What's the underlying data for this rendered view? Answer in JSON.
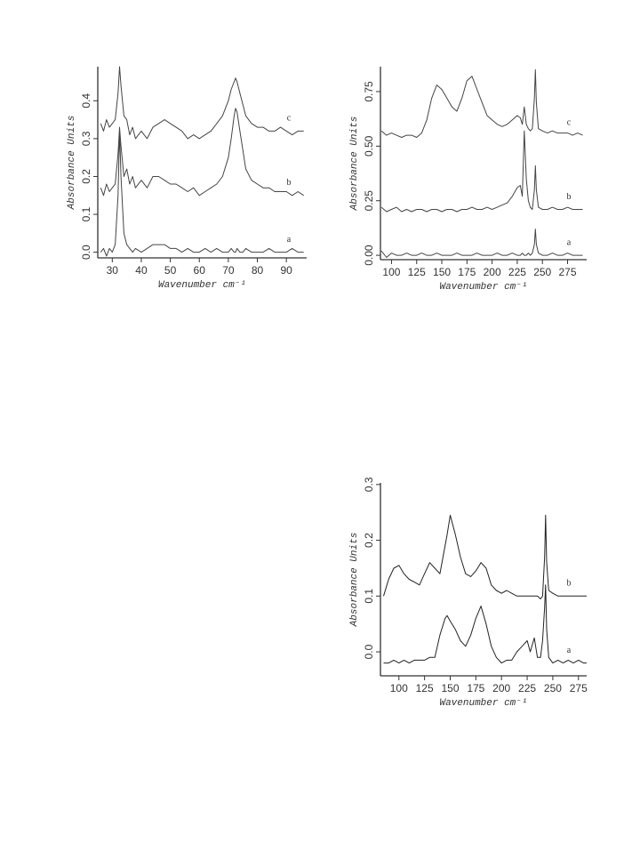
{
  "chart_data": [
    {
      "type": "line",
      "y_label": "Absorbance Units",
      "x_label": "Wavenumber cm⁻¹",
      "x": [
        26,
        27,
        28,
        29,
        30,
        31,
        32,
        32.5,
        33,
        34,
        35,
        36,
        37,
        38,
        40,
        42,
        44,
        46,
        48,
        50,
        52,
        54,
        56,
        58,
        60,
        62,
        64,
        66,
        68,
        70,
        71,
        72,
        72.5,
        73,
        74,
        75,
        76,
        78,
        80,
        82,
        84,
        86,
        88,
        90,
        92,
        94,
        96
      ],
      "series": [
        {
          "name": "a",
          "color": "#444444",
          "values": [
            0.0,
            0.01,
            -0.01,
            0.01,
            0.0,
            0.02,
            0.15,
            0.32,
            0.2,
            0.05,
            0.02,
            0.01,
            0.0,
            0.01,
            0.0,
            0.01,
            0.02,
            0.02,
            0.02,
            0.01,
            0.01,
            0.0,
            0.01,
            0.0,
            0.0,
            0.01,
            0.0,
            0.01,
            0.0,
            0.0,
            0.01,
            0.0,
            0.0,
            0.01,
            0.0,
            0.0,
            0.01,
            0.0,
            0.0,
            0.0,
            0.01,
            0.0,
            0.0,
            0.0,
            0.01,
            0.0,
            0.0
          ]
        },
        {
          "name": "b",
          "color": "#444444",
          "values": [
            0.17,
            0.15,
            0.18,
            0.16,
            0.17,
            0.18,
            0.26,
            0.33,
            0.28,
            0.2,
            0.22,
            0.18,
            0.2,
            0.17,
            0.19,
            0.17,
            0.2,
            0.2,
            0.19,
            0.18,
            0.18,
            0.17,
            0.16,
            0.17,
            0.15,
            0.16,
            0.17,
            0.18,
            0.2,
            0.25,
            0.3,
            0.36,
            0.38,
            0.37,
            0.32,
            0.27,
            0.22,
            0.19,
            0.18,
            0.17,
            0.17,
            0.16,
            0.16,
            0.16,
            0.15,
            0.16,
            0.15
          ]
        },
        {
          "name": "c",
          "color": "#444444",
          "values": [
            0.34,
            0.32,
            0.35,
            0.33,
            0.34,
            0.35,
            0.42,
            0.49,
            0.44,
            0.36,
            0.35,
            0.31,
            0.33,
            0.3,
            0.32,
            0.3,
            0.33,
            0.34,
            0.35,
            0.34,
            0.33,
            0.32,
            0.3,
            0.31,
            0.3,
            0.31,
            0.32,
            0.34,
            0.36,
            0.4,
            0.43,
            0.45,
            0.46,
            0.45,
            0.42,
            0.39,
            0.36,
            0.34,
            0.33,
            0.33,
            0.32,
            0.32,
            0.33,
            0.32,
            0.31,
            0.32,
            0.32
          ]
        }
      ],
      "xlim": [
        25,
        97
      ],
      "ylim": [
        -0.015,
        0.49
      ],
      "xticks": [
        30,
        40,
        50,
        60,
        70,
        80,
        90
      ],
      "yticks": [
        {
          "value": 0,
          "label": "0.0"
        },
        0.1,
        0.2,
        0.3,
        0.4
      ]
    },
    {
      "type": "line",
      "y_label": "Absorbance Units",
      "x_label": "Wavenumber cm⁻¹",
      "x": [
        90,
        95,
        100,
        105,
        110,
        115,
        120,
        125,
        130,
        135,
        140,
        145,
        150,
        155,
        160,
        165,
        170,
        175,
        180,
        185,
        190,
        195,
        200,
        205,
        210,
        215,
        220,
        225,
        228,
        230,
        232,
        234,
        236,
        238,
        240,
        242,
        243,
        244,
        246,
        250,
        255,
        260,
        265,
        270,
        275,
        280,
        285,
        290
      ],
      "series": [
        {
          "name": "a",
          "color": "#444444",
          "values": [
            0.02,
            -0.01,
            0.01,
            0.0,
            0.0,
            0.01,
            0.0,
            0.0,
            0.01,
            0.0,
            0.0,
            0.01,
            0.0,
            0.0,
            0.0,
            0.01,
            0.0,
            0.0,
            0.0,
            0.01,
            0.0,
            0.0,
            0.0,
            0.01,
            0.0,
            0.0,
            0.01,
            0.0,
            0.0,
            0.01,
            0.0,
            0.0,
            0.01,
            0.0,
            0.01,
            0.05,
            0.12,
            0.05,
            0.01,
            0.0,
            0.0,
            0.01,
            0.0,
            0.0,
            0.01,
            0.0,
            0.0,
            0.0
          ]
        },
        {
          "name": "b",
          "color": "#444444",
          "values": [
            0.22,
            0.2,
            0.21,
            0.22,
            0.2,
            0.21,
            0.2,
            0.21,
            0.21,
            0.2,
            0.21,
            0.21,
            0.2,
            0.21,
            0.21,
            0.2,
            0.21,
            0.21,
            0.22,
            0.21,
            0.21,
            0.22,
            0.21,
            0.22,
            0.23,
            0.24,
            0.27,
            0.31,
            0.32,
            0.27,
            0.57,
            0.35,
            0.25,
            0.22,
            0.21,
            0.3,
            0.41,
            0.3,
            0.22,
            0.21,
            0.21,
            0.22,
            0.21,
            0.21,
            0.22,
            0.21,
            0.21,
            0.21
          ]
        },
        {
          "name": "c",
          "color": "#444444",
          "values": [
            0.57,
            0.55,
            0.56,
            0.55,
            0.54,
            0.55,
            0.55,
            0.54,
            0.56,
            0.62,
            0.72,
            0.78,
            0.76,
            0.72,
            0.68,
            0.66,
            0.72,
            0.8,
            0.82,
            0.76,
            0.7,
            0.64,
            0.62,
            0.6,
            0.59,
            0.6,
            0.62,
            0.64,
            0.63,
            0.6,
            0.68,
            0.6,
            0.58,
            0.57,
            0.58,
            0.72,
            0.85,
            0.7,
            0.58,
            0.57,
            0.56,
            0.57,
            0.56,
            0.56,
            0.56,
            0.55,
            0.56,
            0.55
          ]
        }
      ],
      "xlim": [
        89,
        294
      ],
      "ylim": [
        -0.02,
        0.864
      ],
      "xticks": [
        100,
        125,
        150,
        175,
        200,
        225,
        250,
        275
      ],
      "yticks": [
        {
          "value": 0,
          "label": "0.00"
        },
        0.25,
        {
          "value": 0.5,
          "label": "0.50"
        },
        0.75
      ]
    },
    {
      "type": "line",
      "y_label": "Absorbance Units",
      "x_label": "Wavenumber cm⁻¹",
      "x": [
        85,
        90,
        95,
        100,
        105,
        110,
        115,
        120,
        125,
        130,
        135,
        140,
        145,
        147,
        150,
        155,
        160,
        165,
        170,
        175,
        180,
        185,
        190,
        195,
        200,
        205,
        210,
        215,
        220,
        225,
        228,
        232,
        235,
        238,
        240,
        242,
        243,
        244,
        246,
        250,
        255,
        260,
        265,
        270,
        275,
        280,
        283
      ],
      "series": [
        {
          "name": "a",
          "color": "#222222",
          "values": [
            -0.02,
            -0.02,
            -0.015,
            -0.02,
            -0.015,
            -0.02,
            -0.015,
            -0.015,
            -0.015,
            -0.01,
            -0.01,
            0.03,
            0.06,
            0.065,
            0.055,
            0.04,
            0.02,
            0.01,
            0.03,
            0.06,
            0.082,
            0.05,
            0.01,
            -0.01,
            -0.02,
            -0.015,
            -0.015,
            0.0,
            0.01,
            0.02,
            0.0,
            0.025,
            -0.01,
            -0.01,
            0.02,
            0.08,
            0.12,
            0.04,
            -0.01,
            -0.02,
            -0.015,
            -0.02,
            -0.015,
            -0.02,
            -0.015,
            -0.02,
            -0.02
          ]
        },
        {
          "name": "b",
          "color": "#222222",
          "values": [
            0.1,
            0.13,
            0.15,
            0.155,
            0.14,
            0.13,
            0.125,
            0.12,
            0.14,
            0.16,
            0.15,
            0.14,
            0.19,
            0.21,
            0.245,
            0.21,
            0.17,
            0.14,
            0.135,
            0.145,
            0.16,
            0.15,
            0.12,
            0.11,
            0.105,
            0.11,
            0.105,
            0.1,
            0.1,
            0.1,
            0.1,
            0.1,
            0.1,
            0.095,
            0.1,
            0.17,
            0.245,
            0.16,
            0.11,
            0.105,
            0.1,
            0.1,
            0.1,
            0.1,
            0.1,
            0.1,
            0.1
          ]
        }
      ],
      "xlim": [
        82,
        283
      ],
      "ylim": [
        -0.043,
        0.303
      ],
      "xticks": [
        100,
        125,
        150,
        175,
        200,
        225,
        250,
        275
      ],
      "yticks": [
        {
          "value": 0,
          "label": "0.0"
        },
        0.1,
        0.2,
        0.3
      ]
    }
  ]
}
